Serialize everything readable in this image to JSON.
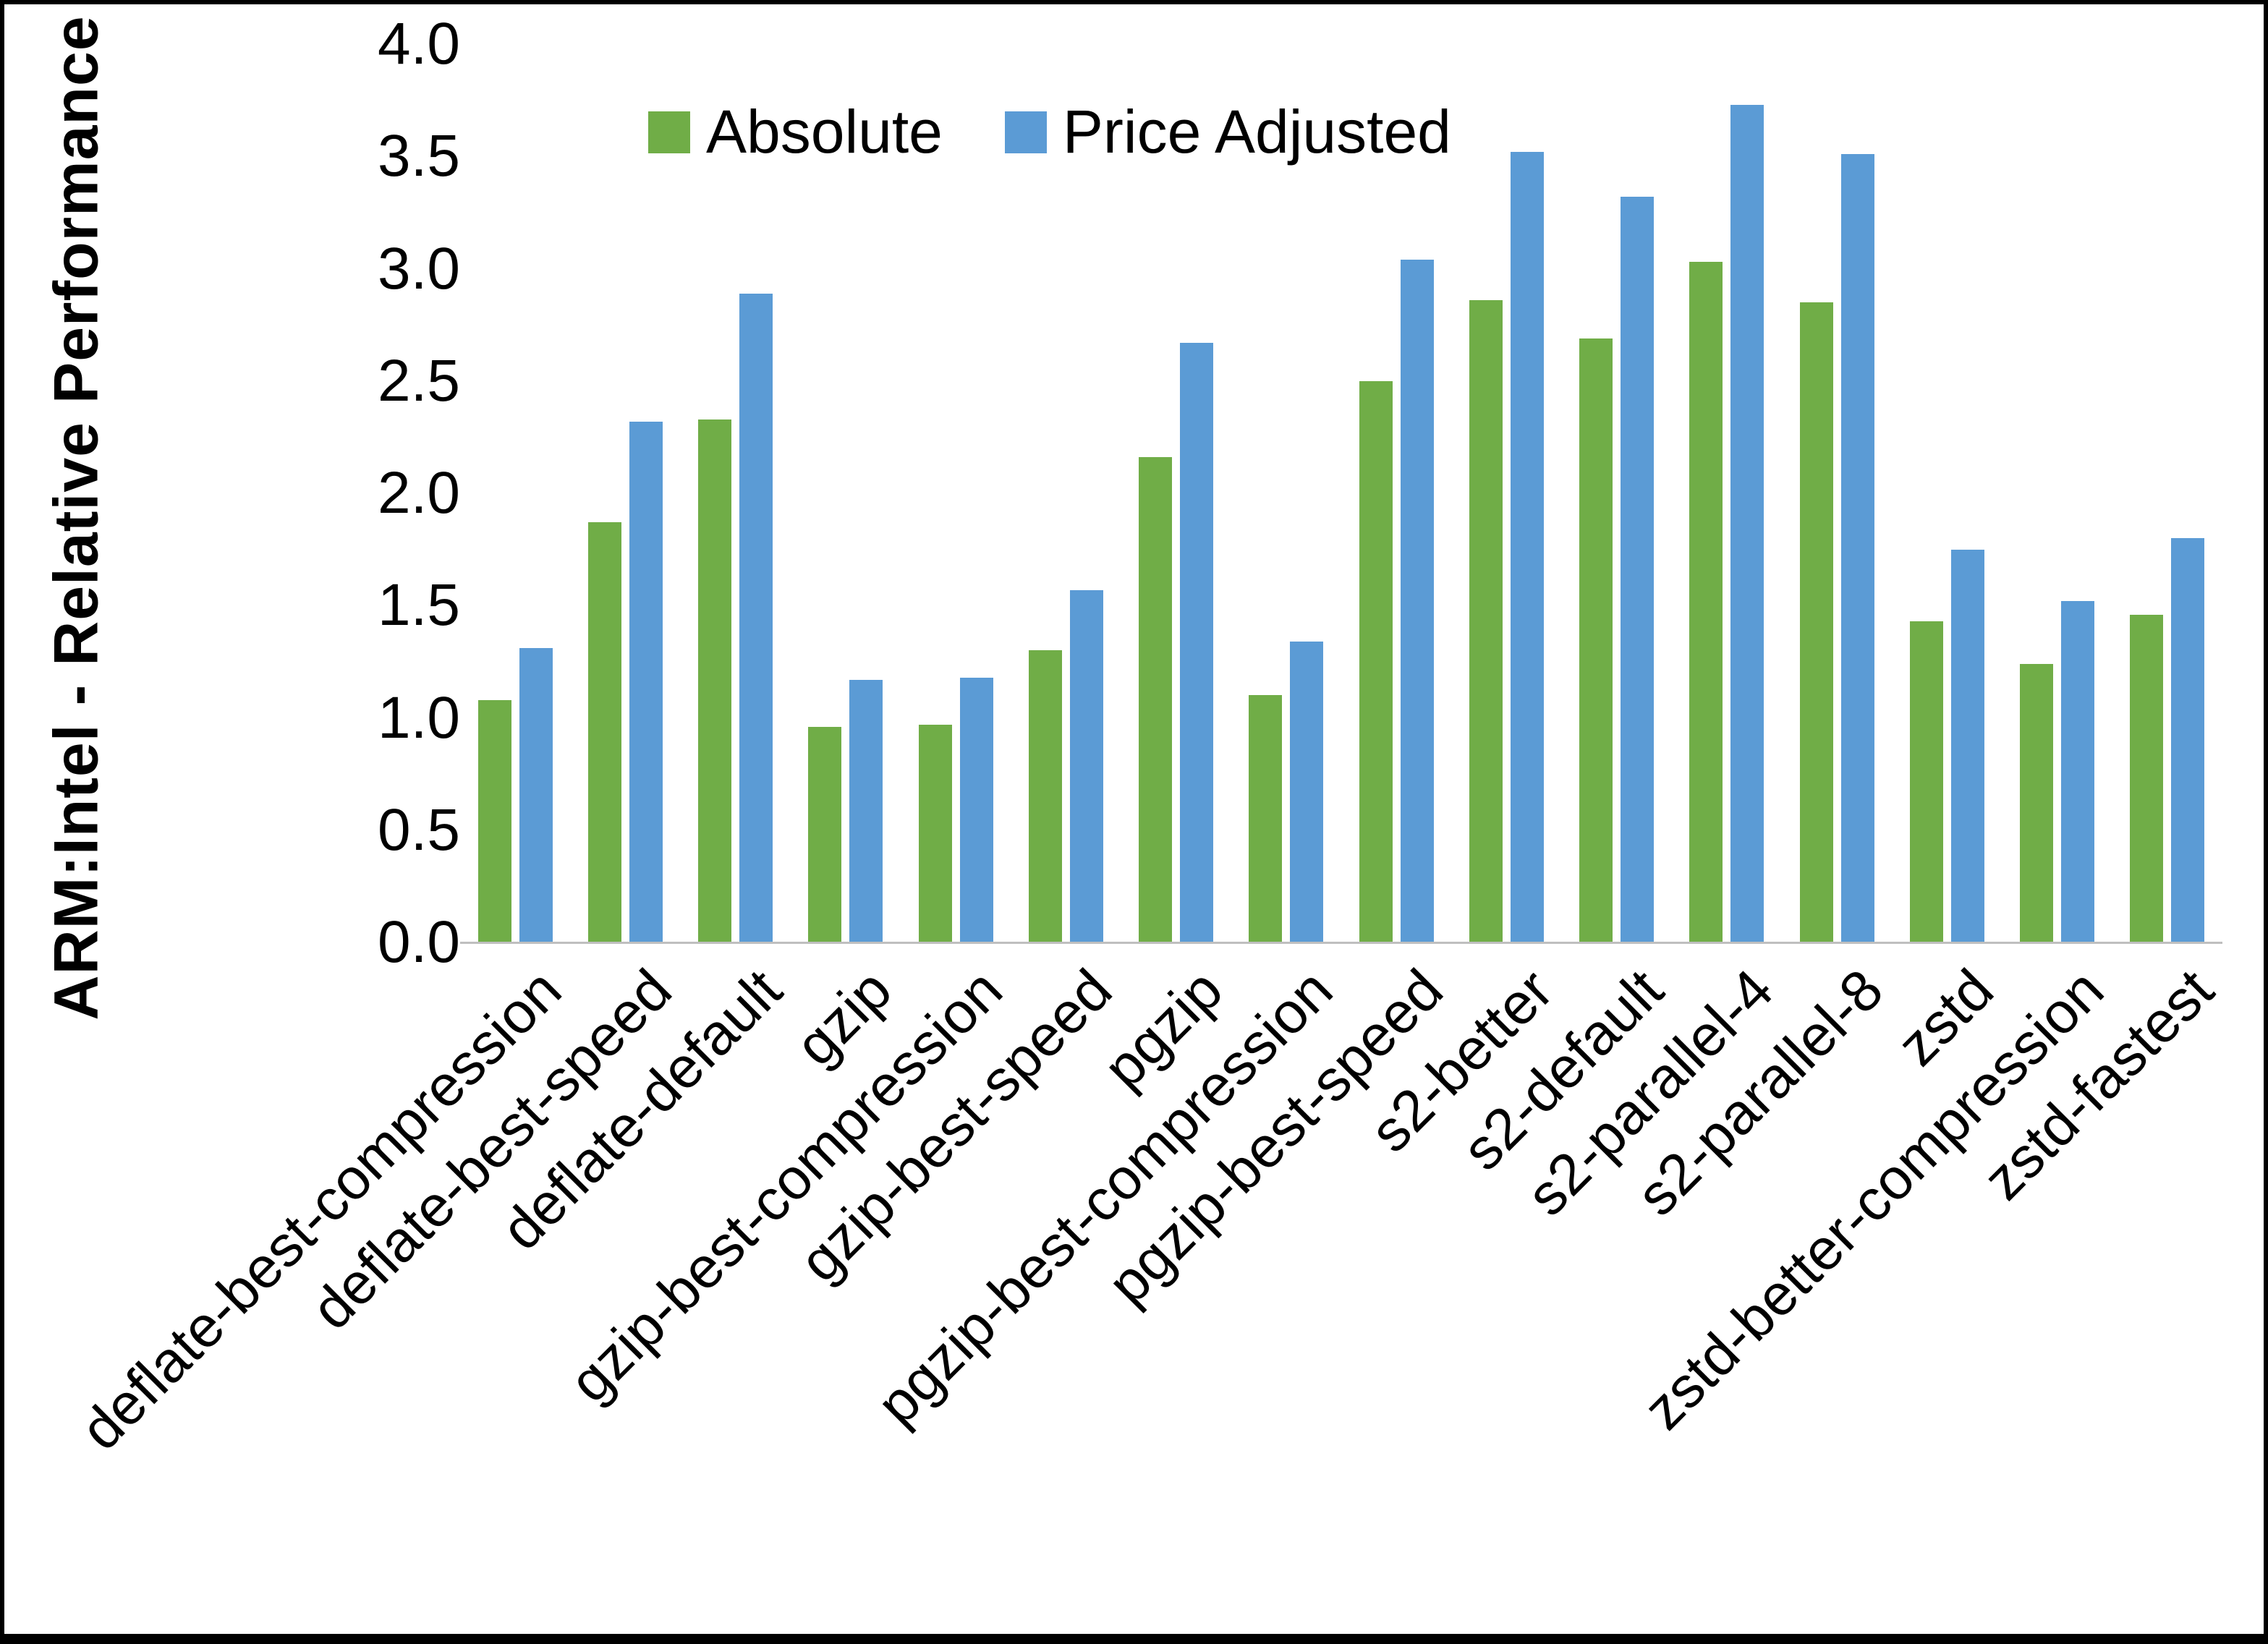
{
  "figure": {
    "background": "#FFFFFF",
    "border_color": "#000000"
  },
  "chart_data": {
    "type": "bar",
    "title": "",
    "xlabel": "",
    "ylabel": "ARM:Intel - Relative Performance",
    "ylim": [
      0.0,
      4.0
    ],
    "ytick_step": 0.5,
    "yticks": [
      "4.0",
      "3.5",
      "3.0",
      "2.5",
      "2.0",
      "1.5",
      "1.0",
      "0.5",
      "0.0"
    ],
    "grid": false,
    "legend_position": "top-center",
    "axis_line_color": "#BFBFBF",
    "categories": [
      "deflate-best-compression",
      "deflate-best-speed",
      "deflate-default",
      "gzip",
      "gzip-best-compression",
      "gzip-best-speed",
      "pgzip",
      "pgzip-best-compression",
      "pgzip-best-speed",
      "s2-better",
      "s2-default",
      "s2-parallel-4",
      "s2-parallel-8",
      "zstd",
      "zstd-better-compression",
      "zstd-fastest"
    ],
    "series": [
      {
        "name": "Absolute",
        "color": "#70AD47",
        "values": [
          1.08,
          1.87,
          2.33,
          0.96,
          0.97,
          1.3,
          2.16,
          1.1,
          2.5,
          2.86,
          2.69,
          3.03,
          2.85,
          1.43,
          1.24,
          1.46
        ]
      },
      {
        "name": "Price Adjusted",
        "color": "#5B9BD5",
        "values": [
          1.31,
          2.32,
          2.89,
          1.17,
          1.18,
          1.57,
          2.67,
          1.34,
          3.04,
          3.52,
          3.32,
          3.73,
          3.51,
          1.75,
          1.52,
          1.8
        ]
      }
    ]
  }
}
